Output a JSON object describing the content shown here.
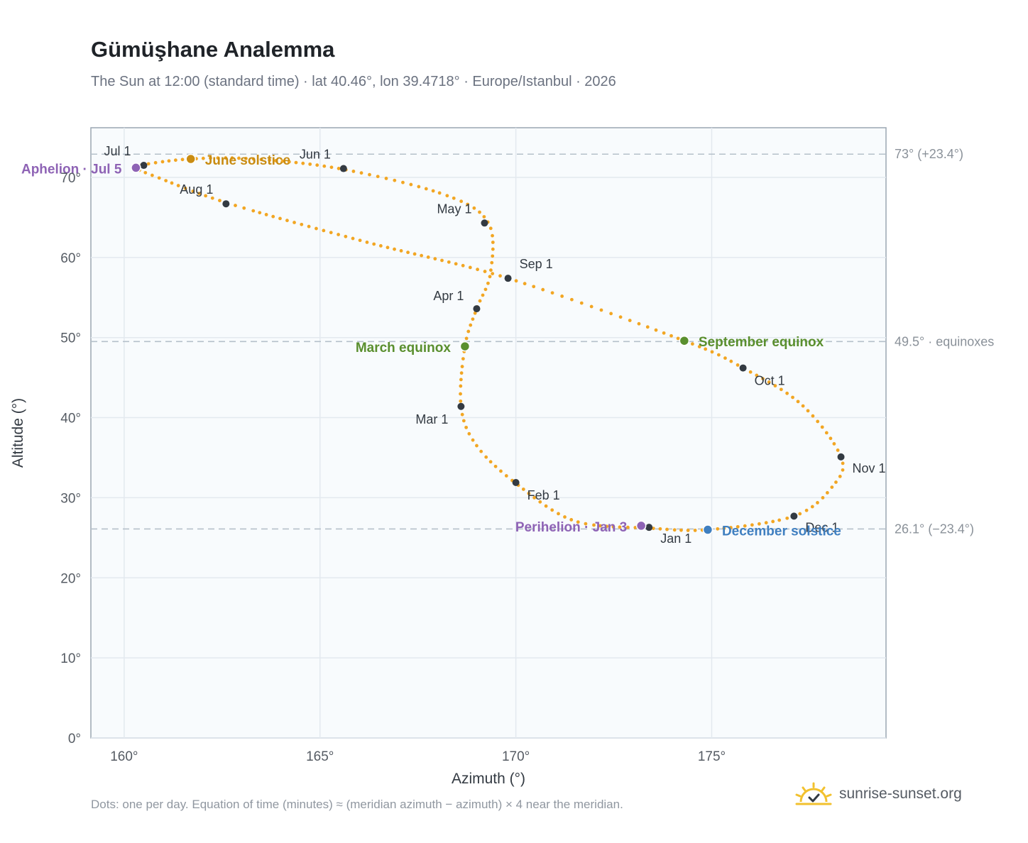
{
  "header": {
    "title": "Gümüşhane Analemma",
    "subtitle": "The Sun at 12:00 (standard time) · lat 40.46°, lon 39.4718° · Europe/Istanbul · 2026"
  },
  "footer": {
    "note": "Dots: one per day. Equation of time (minutes) ≈ (meridian azimuth − azimuth) × 4 near the meridian.",
    "brand": "sunrise-sunset.org"
  },
  "colors": {
    "curve": "#f2a623",
    "month_dot": "#333a42",
    "solstice_june": "#c98c12",
    "equinox": "#5a8f2e",
    "solstice_december": "#3f7fc0",
    "apsis": "#8e63b5",
    "plot_bg": "#f8fbfd",
    "grid": "#e3e9ef",
    "ref_line": "#b5c0ca"
  },
  "chart_data": {
    "type": "scatter",
    "xlabel": "Azimuth (°)",
    "ylabel": "Altitude (°)",
    "xlim": [
      159.15,
      179.45
    ],
    "ylim": [
      0,
      76.2
    ],
    "xticks": [
      160,
      165,
      170,
      175
    ],
    "xtick_labels": [
      "160°",
      "165°",
      "170°",
      "175°"
    ],
    "yticks": [
      0,
      10,
      20,
      30,
      40,
      50,
      60,
      70
    ],
    "ytick_labels": [
      "0°",
      "10°",
      "20°",
      "30°",
      "40°",
      "50°",
      "60°",
      "70°"
    ],
    "grid": true,
    "reference_lines": [
      {
        "y": 72.9,
        "label": "73° (+23.4°)"
      },
      {
        "y": 49.5,
        "label": "49.5° · equinoxes"
      },
      {
        "y": 26.1,
        "label": "26.1° (−23.4°)"
      }
    ],
    "path": [
      {
        "x": 173.4,
        "y": 26.2
      },
      {
        "x": 171.5,
        "y": 27.1
      },
      {
        "x": 170.0,
        "y": 31.8
      },
      {
        "x": 169.0,
        "y": 36.5
      },
      {
        "x": 168.6,
        "y": 41.4
      },
      {
        "x": 168.7,
        "y": 48.9
      },
      {
        "x": 169.0,
        "y": 53.6
      },
      {
        "x": 169.35,
        "y": 58.0
      },
      {
        "x": 169.3,
        "y": 64.3
      },
      {
        "x": 168.2,
        "y": 67.8
      },
      {
        "x": 165.6,
        "y": 71.0
      },
      {
        "x": 163.3,
        "y": 72.3
      },
      {
        "x": 161.7,
        "y": 72.3
      },
      {
        "x": 160.5,
        "y": 71.6
      },
      {
        "x": 160.3,
        "y": 71.2
      },
      {
        "x": 160.8,
        "y": 70.1
      },
      {
        "x": 162.7,
        "y": 66.7
      },
      {
        "x": 166.2,
        "y": 61.9
      },
      {
        "x": 169.8,
        "y": 57.4
      },
      {
        "x": 174.3,
        "y": 49.6
      },
      {
        "x": 175.8,
        "y": 46.2
      },
      {
        "x": 177.3,
        "y": 41.6
      },
      {
        "x": 178.3,
        "y": 35.1
      },
      {
        "x": 178.1,
        "y": 31.5
      },
      {
        "x": 177.1,
        "y": 27.7
      },
      {
        "x": 174.9,
        "y": 26.0
      },
      {
        "x": 173.4,
        "y": 26.2
      }
    ],
    "months": [
      {
        "label": "Jan 1",
        "x": 173.4,
        "y": 26.3
      },
      {
        "label": "Feb 1",
        "x": 170.0,
        "y": 31.9
      },
      {
        "label": "Mar 1",
        "x": 168.6,
        "y": 41.4
      },
      {
        "label": "Apr 1",
        "x": 169.0,
        "y": 53.6
      },
      {
        "label": "May 1",
        "x": 169.2,
        "y": 64.3
      },
      {
        "label": "Jun 1",
        "x": 165.6,
        "y": 71.1
      },
      {
        "label": "Jul 1",
        "x": 160.5,
        "y": 71.5
      },
      {
        "label": "Aug 1",
        "x": 162.6,
        "y": 66.7
      },
      {
        "label": "Sep 1",
        "x": 169.8,
        "y": 57.4
      },
      {
        "label": "Oct 1",
        "x": 175.8,
        "y": 46.2
      },
      {
        "label": "Nov 1",
        "x": 178.3,
        "y": 35.1
      },
      {
        "label": "Dec 1",
        "x": 177.1,
        "y": 27.7
      }
    ],
    "events": [
      {
        "label": "June solstice",
        "x": 161.7,
        "y": 72.3,
        "color": "#c98c12"
      },
      {
        "label": "March equinox",
        "x": 168.7,
        "y": 48.9,
        "color": "#5a8f2e"
      },
      {
        "label": "September equinox",
        "x": 174.3,
        "y": 49.6,
        "color": "#5a8f2e"
      },
      {
        "label": "December solstice",
        "x": 174.9,
        "y": 26.0,
        "color": "#3f7fc0"
      },
      {
        "label": "Aphelion · Jul 5",
        "x": 160.3,
        "y": 71.2,
        "color": "#8e63b5"
      },
      {
        "label": "Perihelion · Jan 3",
        "x": 173.2,
        "y": 26.5,
        "color": "#8e63b5"
      }
    ]
  }
}
